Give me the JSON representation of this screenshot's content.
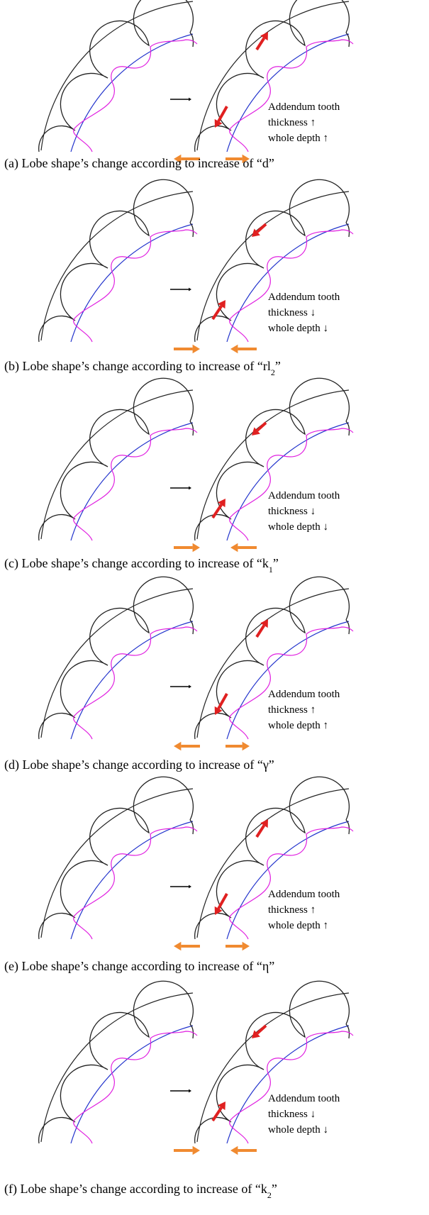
{
  "panels": [
    {
      "annotation": [
        "Addendum  tooth",
        "thickness ↑",
        "whole depth ↑"
      ],
      "caption": {
        "text": "(a)  Lobe shape’s change according to increase of “d”"
      }
    },
    {
      "annotation": [
        "Addendum tooth",
        "thickness ↓",
        "whole depth ↓"
      ],
      "caption": {
        "text": "(b)  Lobe shape’s change according to increase of “rl",
        "subscript": "2",
        "close": "”"
      }
    },
    {
      "annotation": [
        "Addendum tooth",
        "thickness ↓",
        "whole depth ↓"
      ],
      "caption": {
        "text": "(c) Lobe shape’s change according to increase of “k",
        "subscript": "1",
        "close": "”"
      }
    },
    {
      "annotation": [
        "Addendum tooth",
        "thickness ↑",
        "whole depth ↑"
      ],
      "caption": {
        "text": "(d) Lobe shape’s change according to increase of “γ”"
      }
    },
    {
      "annotation": [
        "Addendum tooth",
        "thickness ↑",
        "whole depth ↑"
      ],
      "caption": {
        "text": "(e) Lobe shape’s change according to increase of “η”"
      }
    },
    {
      "annotation": [
        "Addendum  tooth",
        "thickness ↓",
        "whole depth ↓"
      ],
      "caption": {
        "text": "(f) Lobe shape’s change according to increase of “k",
        "subscript": "2",
        "close": "”"
      }
    }
  ]
}
